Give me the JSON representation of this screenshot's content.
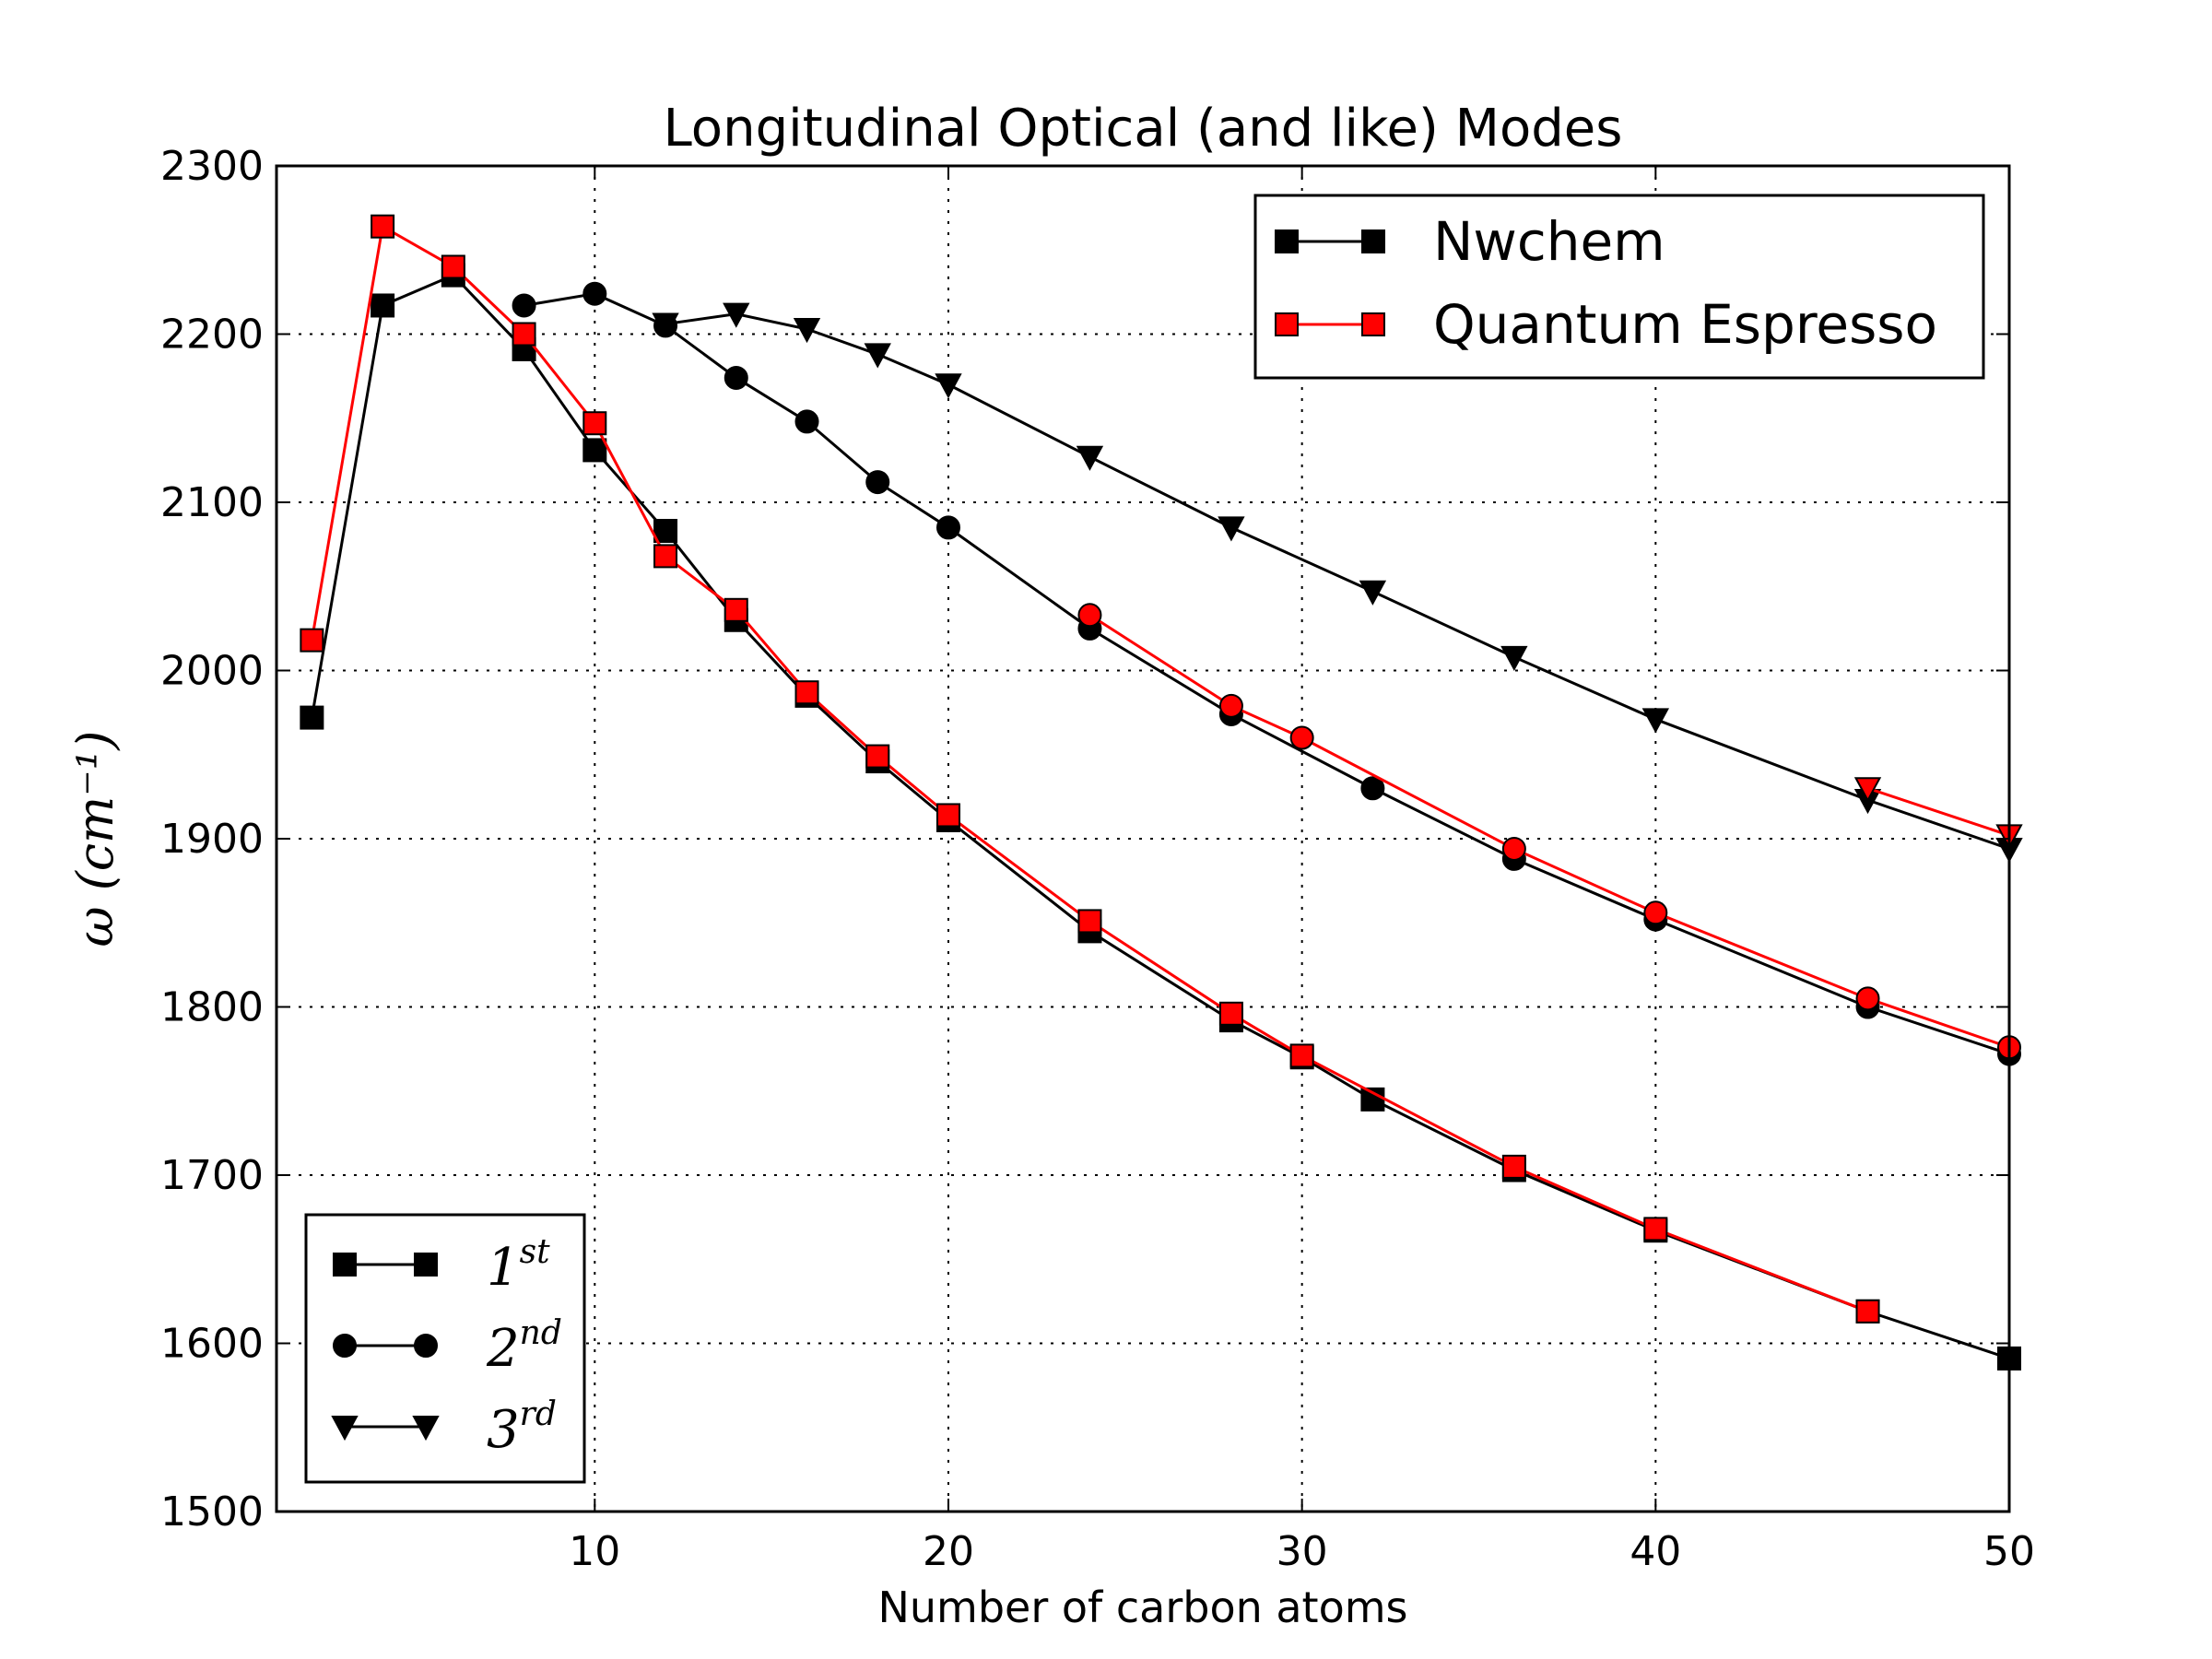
{
  "chart_data": {
    "type": "line",
    "title": "Longitudinal Optical (and like) Modes",
    "xlabel": "Number of carbon atoms",
    "ylabel": "ω (cm⁻¹)",
    "xlim": [
      1,
      50
    ],
    "ylim": [
      1500,
      2300
    ],
    "xticks": [
      10,
      20,
      30,
      40,
      50
    ],
    "yticks": [
      1500,
      1600,
      1700,
      1800,
      1900,
      2000,
      2100,
      2200,
      2300
    ],
    "grid": true,
    "legend_codes": {
      "placement": "top-right",
      "entries": [
        {
          "label": "Nwchem",
          "color": "#000000",
          "face": "#000000"
        },
        {
          "label": "Quantum Espresso",
          "color": "#ff0000",
          "face": "#ff0000"
        }
      ]
    },
    "legend_modes": {
      "placement": "bottom-left",
      "entries": [
        {
          "base": "1",
          "sup": "st",
          "marker": "square"
        },
        {
          "base": "2",
          "sup": "nd",
          "marker": "circle"
        },
        {
          "base": "3",
          "sup": "rd",
          "marker": "triangle-down"
        }
      ]
    },
    "series": [
      {
        "code": "Nwchem",
        "mode": "1st",
        "marker": "square",
        "line": "#000000",
        "face": "#000000",
        "x": [
          2,
          4,
          6,
          8,
          10,
          12,
          14,
          16,
          18,
          20,
          24,
          28,
          30,
          32,
          36,
          40,
          46,
          50
        ],
        "y": [
          1972,
          2217,
          2235,
          2191,
          2131,
          2083,
          2030,
          1985,
          1946,
          1911,
          1845,
          1792,
          1770,
          1745,
          1703,
          1667,
          1619,
          1591
        ]
      },
      {
        "code": "Quantum Espresso",
        "mode": "1st",
        "marker": "square",
        "line": "#ff0000",
        "face": "#ff0000",
        "x": [
          2,
          4,
          6,
          8,
          10,
          12,
          14,
          16,
          18,
          20,
          24,
          28,
          30,
          36,
          40,
          46
        ],
        "y": [
          2018,
          2264,
          2240,
          2200,
          2147,
          2068,
          2036,
          1987,
          1949,
          1914,
          1851,
          1796,
          1771,
          1705,
          1668,
          1619
        ]
      },
      {
        "code": "Nwchem",
        "mode": "2nd",
        "marker": "circle",
        "line": "#000000",
        "face": "#000000",
        "x": [
          8,
          10,
          12,
          14,
          16,
          18,
          20,
          24,
          28,
          32,
          36,
          40,
          46,
          50
        ],
        "y": [
          2217,
          2224,
          2205,
          2174,
          2148,
          2112,
          2085,
          2025,
          1974,
          1930,
          1888,
          1852,
          1800,
          1772
        ]
      },
      {
        "code": "Quantum Espresso",
        "mode": "2nd",
        "marker": "circle",
        "line": "#ff0000",
        "face": "#ff0000",
        "x": [
          24,
          28,
          30,
          36,
          40,
          46,
          50
        ],
        "y": [
          2033,
          1979,
          1960,
          1894,
          1856,
          1805,
          1776
        ]
      },
      {
        "code": "Nwchem",
        "mode": "3rd",
        "marker": "triangle-down",
        "line": "#000000",
        "face": "#000000",
        "x": [
          12,
          14,
          16,
          18,
          20,
          24,
          28,
          32,
          36,
          40,
          46,
          50
        ],
        "y": [
          2206,
          2212,
          2203,
          2188,
          2170,
          2127,
          2085,
          2047,
          2008,
          1971,
          1923,
          1894
        ]
      },
      {
        "code": "Quantum Espresso",
        "mode": "3rd",
        "marker": "triangle-down",
        "line": "#ff0000",
        "face": "#ff0000",
        "x": [
          46,
          50
        ],
        "y": [
          1930,
          1902
        ]
      }
    ]
  }
}
